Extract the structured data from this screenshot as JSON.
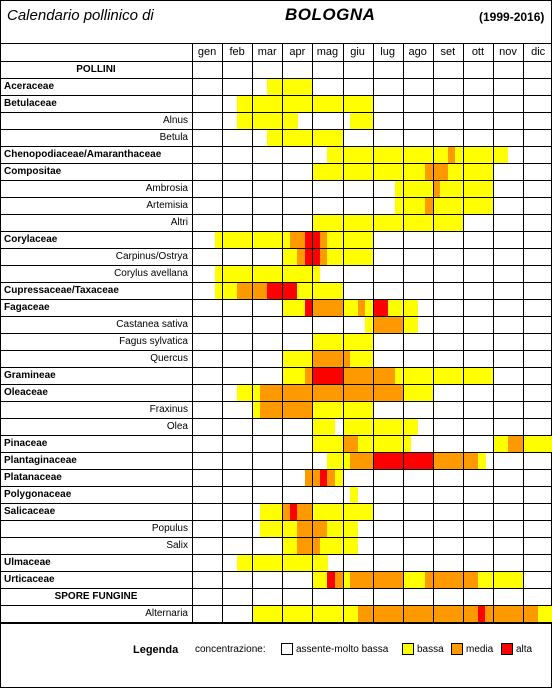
{
  "title": {
    "left": "Calendario pollinico di",
    "city": "BOLOGNA",
    "years": "(1999-2016)"
  },
  "months": [
    "gen",
    "feb",
    "mar",
    "apr",
    "mag",
    "giu",
    "lug",
    "ago",
    "set",
    "ott",
    "nov",
    "dic"
  ],
  "colors": {
    "0": "#ffffff",
    "1": "#ffff00",
    "2": "#ff9900",
    "3": "#ff0000"
  },
  "rows": [
    {
      "label": "POLLINI",
      "kind": "sec",
      "bins": "000000000000000000000000000000000000000000000000"
    },
    {
      "label": "Aceraceae",
      "kind": "fam",
      "bins": "000000000011111100000000000000000000000000000000"
    },
    {
      "label": "Betulaceae",
      "kind": "fam",
      "bins": "000000111111111111111111000000000000000000000000"
    },
    {
      "label": "Alnus",
      "kind": "sub",
      "bins": "000000111111110000000111000000000000000000000000"
    },
    {
      "label": "Betula",
      "kind": "sub",
      "bins": "000000000011111111110000000000000000000000000000"
    },
    {
      "label": "Chenopodiaceae/Amaranthaceae",
      "kind": "fam",
      "bins": "000000000000000000111111111111111121111111000000"
    },
    {
      "label": "Compositae",
      "kind": "fam",
      "bins": "000000000000000011111111111111122211111100000000"
    },
    {
      "label": "Ambrosia",
      "kind": "sub",
      "bins": "000000000000000000000000000111112111111100000000"
    },
    {
      "label": "Artemisia",
      "kind": "sub",
      "bins": "000000000000000000000000000111121111111100000000"
    },
    {
      "label": "Altri",
      "kind": "sub",
      "bins": "000000000000000011111111111111111111000000000000"
    },
    {
      "label": "Corylaceae",
      "kind": "fam",
      "bins": "000111111111122332111111000000000000000000000000"
    },
    {
      "label": "Carpinus/Ostrya",
      "kind": "sub",
      "bins": "000000000000112332111111000000000000000000000000"
    },
    {
      "label": "Corylus avellana",
      "kind": "sub",
      "bins": "000111111111111110000000000000000000000000000000"
    },
    {
      "label": "Cupressaceae/Taxaceae",
      "kind": "fam",
      "bins": "000111222233331111110000000000000000000000000000"
    },
    {
      "label": "Fagaceae",
      "kind": "fam",
      "bins": "000000000000111322221121331111000000000000000000"
    },
    {
      "label": "Castanea sativa",
      "kind": "sub",
      "bins": "000000000000000000000001222211000000000000000000"
    },
    {
      "label": "Fagus sylvatica",
      "kind": "sub",
      "bins": "000000000000000011111111000000000000000000000000"
    },
    {
      "label": "Quercus",
      "kind": "sub",
      "bins": "000000000000111122222111000000000000000000000000"
    },
    {
      "label": "Gramineae",
      "kind": "fam",
      "bins": "000000000000111233332222222111111111111100000000"
    },
    {
      "label": "Oleaceae",
      "kind": "fam",
      "bins": "000000111222222222222222222211110000000000000000"
    },
    {
      "label": "Fraxinus",
      "kind": "sub",
      "bins": "000000001222222211111111000000000000000000000000"
    },
    {
      "label": "Olea",
      "kind": "sub",
      "bins": "000000000000000011101111111111000000000000000000"
    },
    {
      "label": "Pinaceae",
      "kind": "fam",
      "bins": "000000000000000011112211111110000000000011221111"
    },
    {
      "label": "Plantaginaceae",
      "kind": "fam",
      "bins": "000000000000000000111222333333332222221000000000"
    },
    {
      "label": "Platanaceae",
      "kind": "fam",
      "bins": "000000000000000223210000000000000000000000000000"
    },
    {
      "label": "Polygonaceae",
      "kind": "fam",
      "bins": "000000000000000000000100000000000000000000000000"
    },
    {
      "label": "Salicaceae",
      "kind": "fam",
      "bins": "000000000111232211111111000000000000000000000000"
    },
    {
      "label": "Populus",
      "kind": "sub",
      "bins": "000000000111112222111100000000000000000000000000"
    },
    {
      "label": "Salix",
      "kind": "sub",
      "bins": "000000000000112221111100000000000000000000000000"
    },
    {
      "label": "Ulmaceae",
      "kind": "fam",
      "bins": "000000111111111111000000000000000000000000000000"
    },
    {
      "label": "Urticaceae",
      "kind": "fam",
      "bins": "000000000000000011321222222211122222221111110000"
    },
    {
      "label": "SPORE FUNGINE",
      "kind": "sec",
      "bins": "000000000000000000000000000000000000000000000000"
    },
    {
      "label": "Alternaria",
      "kind": "sub",
      "bins": "000000001111111111111122222222222222223222222211"
    }
  ],
  "legend": {
    "title": "Legenda",
    "concentration_label": "concentrazione:",
    "items": [
      {
        "label": "assente-molto bassa",
        "color": "#ffffff"
      },
      {
        "label": "bassa",
        "color": "#ffff00"
      },
      {
        "label": "media",
        "color": "#ff9900"
      },
      {
        "label": "alta",
        "color": "#ff0000"
      }
    ]
  }
}
